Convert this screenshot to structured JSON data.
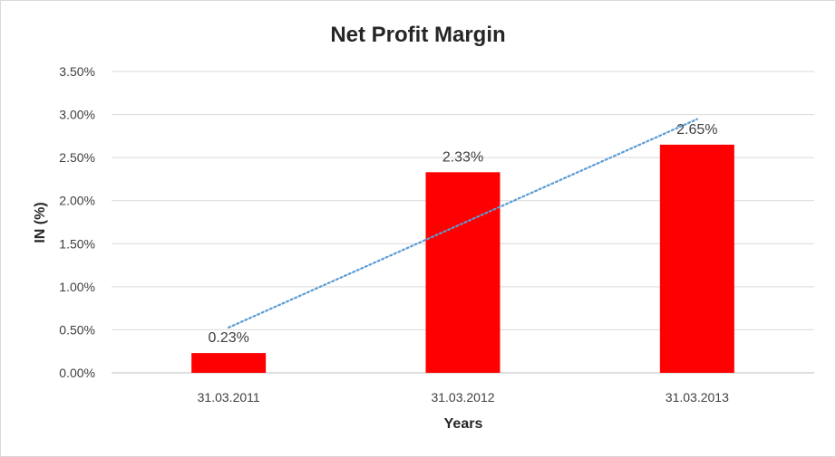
{
  "chart_data": {
    "type": "bar",
    "title": "Net Profit Margin",
    "xlabel": "Years",
    "ylabel": "IN (%)",
    "categories": [
      "31.03.2011",
      "31.03.2012",
      "31.03.2013"
    ],
    "values": [
      0.23,
      2.33,
      2.65
    ],
    "data_labels": [
      "0.23%",
      "2.33%",
      "2.65%"
    ],
    "ylim": [
      0,
      3.5
    ],
    "y_ticks": [
      0,
      0.5,
      1.0,
      1.5,
      2.0,
      2.5,
      3.0,
      3.5
    ],
    "y_tick_labels": [
      "0.00%",
      "0.50%",
      "1.00%",
      "1.50%",
      "2.00%",
      "2.50%",
      "3.00%",
      "3.50%"
    ],
    "bar_color": "#ff0000",
    "trendline": {
      "type": "linear",
      "color": "#5b9bd5",
      "style": "dotted"
    },
    "grid": true,
    "legend": "none"
  }
}
